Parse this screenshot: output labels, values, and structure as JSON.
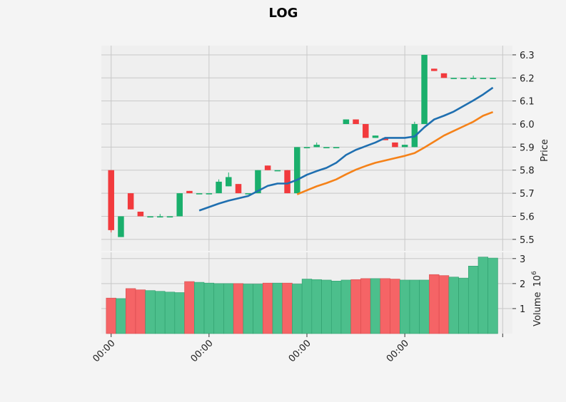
{
  "chart_data": {
    "type": "candlestick",
    "title": "LOG",
    "price_panel": {
      "ylabel": "Price",
      "ylim": [
        5.45,
        6.34
      ],
      "yticks": [
        5.5,
        5.6,
        5.7,
        5.8,
        5.9,
        6.0,
        6.1,
        6.2,
        6.3
      ],
      "ytick_labels": [
        "5.5",
        "5.6",
        "5.7",
        "5.8",
        "5.9",
        "6.0",
        "6.1",
        "6.2",
        "6.3"
      ],
      "grid": true
    },
    "volume_panel": {
      "ylabel": "Volume",
      "multiplier_label": "10",
      "multiplier_exponent": "6",
      "ylim": [
        0,
        3.25
      ],
      "yticks": [
        1,
        2,
        3
      ],
      "ytick_labels": [
        "1",
        "2",
        "3"
      ],
      "grid": true
    },
    "xtick_labels": [
      "00:00",
      "00:00",
      "00:00",
      "00:00",
      ""
    ],
    "xtick_positions": [
      0,
      10,
      20,
      30,
      40
    ],
    "xlim": [
      -1.0,
      41.0
    ],
    "colors": {
      "up": "#1aaf6c",
      "down": "#f23a3d",
      "volume_up": "#4cbf8c",
      "volume_down": "#f56466",
      "ma_fast": "#1f6fb0",
      "ma_slow": "#f58219",
      "panel_bg": "#efefef",
      "grid": "#c8c8c8"
    },
    "candles": [
      {
        "o": 5.8,
        "h": 5.8,
        "l": 5.53,
        "c": 5.54,
        "v": 1.42
      },
      {
        "o": 5.51,
        "h": 5.6,
        "l": 5.51,
        "c": 5.6,
        "v": 1.4
      },
      {
        "o": 5.7,
        "h": 5.7,
        "l": 5.63,
        "c": 5.63,
        "v": 1.8
      },
      {
        "o": 5.62,
        "h": 5.62,
        "l": 5.6,
        "c": 5.6,
        "v": 1.75
      },
      {
        "o": 5.6,
        "h": 5.6,
        "l": 5.6,
        "c": 5.6,
        "v": 1.72
      },
      {
        "o": 5.6,
        "h": 5.61,
        "l": 5.6,
        "c": 5.6,
        "v": 1.69
      },
      {
        "o": 5.6,
        "h": 5.6,
        "l": 5.6,
        "c": 5.6,
        "v": 1.66
      },
      {
        "o": 5.6,
        "h": 5.7,
        "l": 5.6,
        "c": 5.7,
        "v": 1.64
      },
      {
        "o": 5.71,
        "h": 5.71,
        "l": 5.7,
        "c": 5.7,
        "v": 2.08
      },
      {
        "o": 5.7,
        "h": 5.7,
        "l": 5.7,
        "c": 5.7,
        "v": 2.05
      },
      {
        "o": 5.7,
        "h": 5.7,
        "l": 5.7,
        "c": 5.7,
        "v": 2.02
      },
      {
        "o": 5.7,
        "h": 5.76,
        "l": 5.7,
        "c": 5.75,
        "v": 2.0
      },
      {
        "o": 5.73,
        "h": 5.79,
        "l": 5.73,
        "c": 5.77,
        "v": 2.0
      },
      {
        "o": 5.74,
        "h": 5.74,
        "l": 5.7,
        "c": 5.7,
        "v": 2.0
      },
      {
        "o": 5.7,
        "h": 5.7,
        "l": 5.7,
        "c": 5.7,
        "v": 1.98
      },
      {
        "o": 5.7,
        "h": 5.8,
        "l": 5.7,
        "c": 5.8,
        "v": 1.98
      },
      {
        "o": 5.82,
        "h": 5.82,
        "l": 5.8,
        "c": 5.8,
        "v": 2.02
      },
      {
        "o": 5.8,
        "h": 5.8,
        "l": 5.8,
        "c": 5.8,
        "v": 2.02
      },
      {
        "o": 5.8,
        "h": 5.8,
        "l": 5.7,
        "c": 5.7,
        "v": 2.02
      },
      {
        "o": 5.7,
        "h": 5.9,
        "l": 5.7,
        "c": 5.9,
        "v": 1.98
      },
      {
        "o": 5.9,
        "h": 5.9,
        "l": 5.9,
        "c": 5.9,
        "v": 2.18
      },
      {
        "o": 5.9,
        "h": 5.92,
        "l": 5.9,
        "c": 5.91,
        "v": 2.16
      },
      {
        "o": 5.9,
        "h": 5.9,
        "l": 5.9,
        "c": 5.9,
        "v": 2.14
      },
      {
        "o": 5.9,
        "h": 5.9,
        "l": 5.9,
        "c": 5.9,
        "v": 2.1
      },
      {
        "o": 6.0,
        "h": 6.02,
        "l": 6.0,
        "c": 6.02,
        "v": 2.14
      },
      {
        "o": 6.02,
        "h": 6.02,
        "l": 6.0,
        "c": 6.0,
        "v": 2.16
      },
      {
        "o": 6.0,
        "h": 6.0,
        "l": 5.94,
        "c": 5.94,
        "v": 2.2
      },
      {
        "o": 5.94,
        "h": 5.95,
        "l": 5.94,
        "c": 5.95,
        "v": 2.2
      },
      {
        "o": 5.94,
        "h": 5.94,
        "l": 5.93,
        "c": 5.93,
        "v": 2.2
      },
      {
        "o": 5.92,
        "h": 5.92,
        "l": 5.9,
        "c": 5.9,
        "v": 2.18
      },
      {
        "o": 5.9,
        "h": 5.91,
        "l": 5.9,
        "c": 5.91,
        "v": 2.14
      },
      {
        "o": 5.9,
        "h": 6.01,
        "l": 5.9,
        "c": 6.0,
        "v": 2.14
      },
      {
        "o": 6.0,
        "h": 6.3,
        "l": 6.0,
        "c": 6.3,
        "v": 2.14
      },
      {
        "o": 6.24,
        "h": 6.24,
        "l": 6.23,
        "c": 6.23,
        "v": 2.36
      },
      {
        "o": 6.22,
        "h": 6.22,
        "l": 6.2,
        "c": 6.2,
        "v": 2.32
      },
      {
        "o": 6.2,
        "h": 6.2,
        "l": 6.2,
        "c": 6.2,
        "v": 2.26
      },
      {
        "o": 6.2,
        "h": 6.2,
        "l": 6.2,
        "c": 6.2,
        "v": 2.22
      },
      {
        "o": 6.2,
        "h": 6.21,
        "l": 6.2,
        "c": 6.2,
        "v": 2.7
      },
      {
        "o": 6.2,
        "h": 6.2,
        "l": 6.2,
        "c": 6.2,
        "v": 3.06
      },
      {
        "o": 6.2,
        "h": 6.2,
        "l": 6.2,
        "c": 6.2,
        "v": 3.02
      }
    ],
    "ma_fast": {
      "start_index": 9,
      "values": [
        5.625,
        5.64,
        5.655,
        5.668,
        5.678,
        5.688,
        5.71,
        5.732,
        5.742,
        5.742,
        5.758,
        5.78,
        5.796,
        5.81,
        5.832,
        5.866,
        5.888,
        5.904,
        5.92,
        5.94,
        5.94,
        5.94,
        5.946,
        5.986,
        6.02,
        6.036,
        6.054,
        6.078,
        6.102,
        6.128,
        6.158
      ]
    },
    "ma_slow": {
      "start_index": 19,
      "values": [
        5.695,
        5.713,
        5.73,
        5.744,
        5.76,
        5.782,
        5.802,
        5.818,
        5.832,
        5.842,
        5.852,
        5.862,
        5.874,
        5.898,
        5.924,
        5.95,
        5.97,
        5.99,
        6.01,
        6.036,
        6.052
      ]
    }
  }
}
